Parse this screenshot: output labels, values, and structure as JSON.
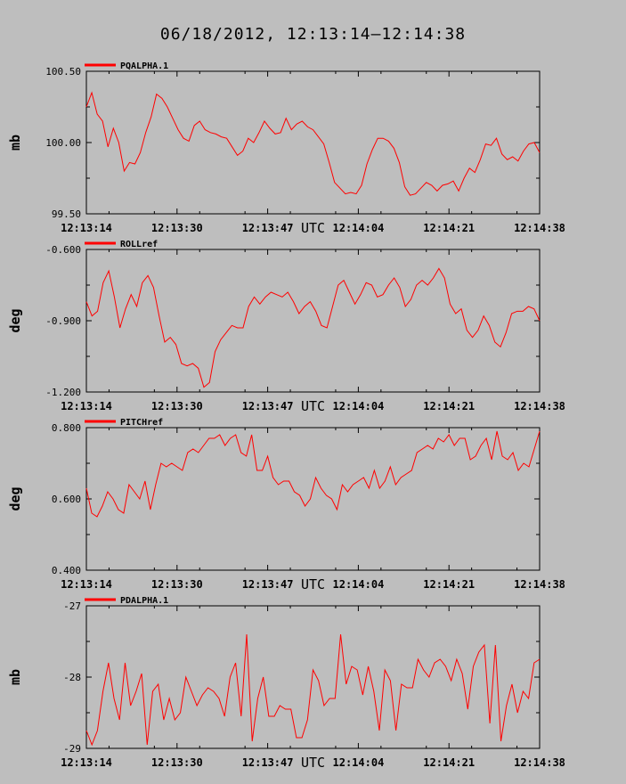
{
  "page": {
    "title": "06/18/2012, 12:13:14–12:14:38"
  },
  "style": {
    "background": "#bebebe",
    "line_color": "#ff0000",
    "axis_color": "#000000"
  },
  "chart_data": [
    {
      "type": "line",
      "series": [
        {
          "name": "PQALPHA.1",
          "values": [
            100.25,
            100.35,
            100.2,
            100.15,
            99.97,
            100.1,
            100.0,
            99.8,
            99.86,
            99.85,
            99.93,
            100.07,
            100.18,
            100.34,
            100.31,
            100.25,
            100.17,
            100.09,
            100.03,
            100.01,
            100.12,
            100.15,
            100.09,
            100.07,
            100.06,
            100.04,
            100.03,
            99.97,
            99.91,
            99.94,
            100.03,
            100.0,
            100.07,
            100.15,
            100.1,
            100.06,
            100.07,
            100.17,
            100.09,
            100.13,
            100.15,
            100.11,
            100.09,
            100.04,
            99.99,
            99.86,
            99.72,
            99.68,
            99.64,
            99.65,
            99.64,
            99.7,
            99.85,
            99.95,
            100.03,
            100.03,
            100.01,
            99.96,
            99.86,
            99.69,
            99.63,
            99.64,
            99.68,
            99.72,
            99.7,
            99.66,
            99.7,
            99.71,
            99.73,
            99.66,
            99.75,
            99.82,
            99.79,
            99.88,
            99.99,
            99.98,
            100.03,
            99.92,
            99.88,
            99.9,
            99.87,
            99.94,
            99.99,
            100.0,
            99.93
          ]
        }
      ],
      "ylabel": "mb",
      "ylim": [
        99.5,
        100.5
      ],
      "yticks": [
        "99.50",
        "100.00",
        "100.50"
      ],
      "xlabel": "UTC",
      "xticks": [
        "12:13:14",
        "12:13:30",
        "12:13:47",
        "12:14:04",
        "12:14:21",
        "12:14:38"
      ],
      "grid": false,
      "legend": "top-left"
    },
    {
      "type": "line",
      "series": [
        {
          "name": "ROLLref",
          "values": [
            -0.82,
            -0.88,
            -0.86,
            -0.74,
            -0.69,
            -0.8,
            -0.93,
            -0.85,
            -0.79,
            -0.84,
            -0.74,
            -0.71,
            -0.76,
            -0.88,
            -0.99,
            -0.97,
            -1.0,
            -1.08,
            -1.09,
            -1.08,
            -1.1,
            -1.18,
            -1.16,
            -1.03,
            -0.98,
            -0.95,
            -0.92,
            -0.93,
            -0.93,
            -0.84,
            -0.8,
            -0.83,
            -0.8,
            -0.78,
            -0.79,
            -0.8,
            -0.78,
            -0.82,
            -0.87,
            -0.84,
            -0.82,
            -0.86,
            -0.92,
            -0.93,
            -0.84,
            -0.75,
            -0.73,
            -0.78,
            -0.83,
            -0.79,
            -0.74,
            -0.75,
            -0.8,
            -0.79,
            -0.75,
            -0.72,
            -0.76,
            -0.84,
            -0.81,
            -0.75,
            -0.73,
            -0.75,
            -0.72,
            -0.68,
            -0.72,
            -0.83,
            -0.87,
            -0.85,
            -0.94,
            -0.97,
            -0.94,
            -0.88,
            -0.92,
            -0.99,
            -1.01,
            -0.95,
            -0.87,
            -0.86,
            -0.86,
            -0.84,
            -0.85,
            -0.9
          ]
        }
      ],
      "ylabel": "deg",
      "ylim": [
        -1.2,
        -0.6
      ],
      "yticks": [
        "-1.200",
        "-0.900",
        "-0.600"
      ],
      "xlabel": "UTC",
      "xticks": [
        "12:13:14",
        "12:13:30",
        "12:13:47",
        "12:14:04",
        "12:14:21",
        "12:14:38"
      ],
      "grid": false,
      "legend": "top-left"
    },
    {
      "type": "line",
      "series": [
        {
          "name": "PITCHref",
          "values": [
            0.63,
            0.56,
            0.55,
            0.58,
            0.62,
            0.6,
            0.57,
            0.56,
            0.64,
            0.62,
            0.6,
            0.65,
            0.57,
            0.64,
            0.7,
            0.69,
            0.7,
            0.69,
            0.68,
            0.73,
            0.74,
            0.73,
            0.75,
            0.77,
            0.77,
            0.78,
            0.75,
            0.77,
            0.78,
            0.73,
            0.72,
            0.78,
            0.68,
            0.68,
            0.72,
            0.66,
            0.64,
            0.65,
            0.65,
            0.62,
            0.61,
            0.58,
            0.6,
            0.66,
            0.63,
            0.61,
            0.6,
            0.57,
            0.64,
            0.62,
            0.64,
            0.65,
            0.66,
            0.63,
            0.68,
            0.63,
            0.65,
            0.69,
            0.64,
            0.66,
            0.67,
            0.68,
            0.73,
            0.74,
            0.75,
            0.74,
            0.77,
            0.76,
            0.78,
            0.75,
            0.77,
            0.77,
            0.71,
            0.72,
            0.75,
            0.77,
            0.71,
            0.79,
            0.72,
            0.71,
            0.73,
            0.68,
            0.7,
            0.69,
            0.74,
            0.79
          ]
        }
      ],
      "ylabel": "deg",
      "ylim": [
        0.4,
        0.8
      ],
      "yticks": [
        "0.400",
        "0.600",
        "0.800"
      ],
      "xlabel": "UTC",
      "xticks": [
        "12:13:14",
        "12:13:30",
        "12:13:47",
        "12:14:04",
        "12:14:21",
        "12:14:38"
      ],
      "grid": false,
      "legend": "top-left"
    },
    {
      "type": "line",
      "series": [
        {
          "name": "PDALPHA.1",
          "values": [
            -28.75,
            -28.95,
            -28.75,
            -28.2,
            -27.8,
            -28.3,
            -28.6,
            -27.8,
            -28.4,
            -28.2,
            -27.95,
            -28.95,
            -28.2,
            -28.1,
            -28.6,
            -28.3,
            -28.6,
            -28.5,
            -28.0,
            -28.2,
            -28.4,
            -28.25,
            -28.15,
            -28.2,
            -28.3,
            -28.55,
            -28.0,
            -27.8,
            -28.55,
            -27.4,
            -28.9,
            -28.3,
            -28.0,
            -28.55,
            -28.55,
            -28.4,
            -28.45,
            -28.45,
            -28.85,
            -28.85,
            -28.6,
            -27.9,
            -28.05,
            -28.4,
            -28.3,
            -28.3,
            -27.4,
            -28.1,
            -27.85,
            -27.9,
            -28.25,
            -27.85,
            -28.2,
            -28.75,
            -27.9,
            -28.05,
            -28.75,
            -28.1,
            -28.15,
            -28.15,
            -27.75,
            -27.9,
            -28.0,
            -27.8,
            -27.75,
            -27.85,
            -28.05,
            -27.75,
            -27.95,
            -28.45,
            -27.85,
            -27.65,
            -27.55,
            -28.65,
            -27.55,
            -28.9,
            -28.4,
            -28.1,
            -28.5,
            -28.2,
            -28.3,
            -27.8,
            -27.75
          ]
        }
      ],
      "ylabel": "mb",
      "ylim": [
        -29,
        -27
      ],
      "yticks": [
        "-29",
        "-28",
        "-27"
      ],
      "xlabel": "UTC",
      "xticks": [
        "12:13:14",
        "12:13:30",
        "12:13:47",
        "12:14:04",
        "12:14:21",
        "12:14:38"
      ],
      "grid": false,
      "legend": "top-left"
    }
  ]
}
